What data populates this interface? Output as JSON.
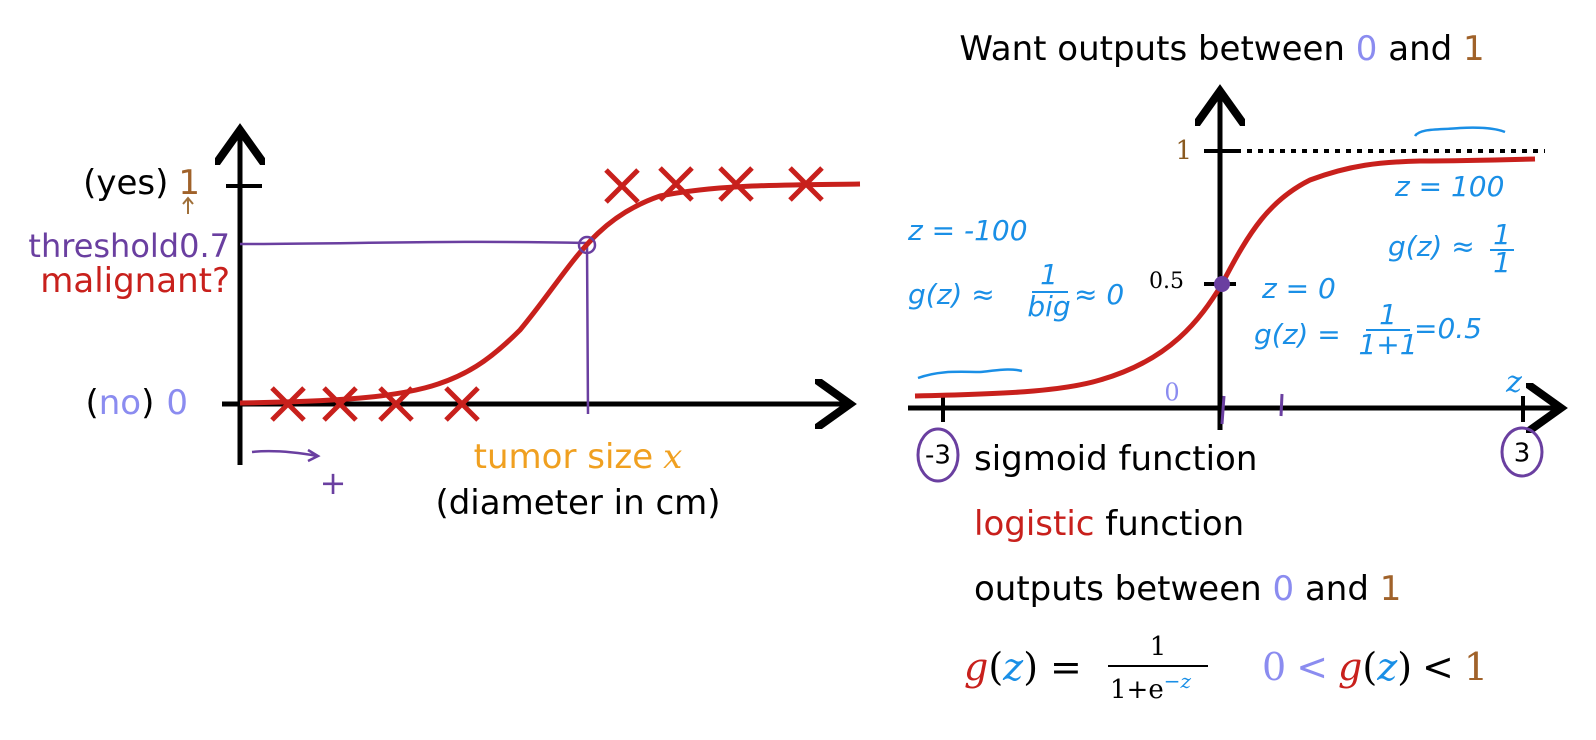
{
  "left_plot": {
    "y_top_label": [
      "(yes)",
      "1"
    ],
    "threshold": [
      "threshold",
      "0.7"
    ],
    "y_axis_title": "malignant?",
    "y_bottom_label": [
      "(",
      "no",
      ")",
      "0"
    ],
    "x_axis_title": [
      "tumor size",
      "x"
    ],
    "x_axis_subtitle": "(diameter in cm)",
    "hand_plus": "+"
  },
  "right_plot": {
    "title": [
      "Want outputs between ",
      "0",
      " and ",
      "1"
    ],
    "y_tick_top": "1",
    "y_tick_mid": "0.5",
    "origin_label": "0",
    "x_axis_title": "z",
    "x_left": "-3",
    "x_right": "3",
    "notes_left": [
      "z = -100",
      "g(z) ≈",
      "1",
      "big",
      "≈ 0"
    ],
    "notes_right": [
      "z = 100",
      "g(z) ≈",
      "1",
      "1"
    ],
    "notes_mid": [
      "z = 0",
      "g(z) =",
      "1",
      "1+1",
      "=0.5"
    ]
  },
  "text_block": {
    "line1": "sigmoid function",
    "line2": [
      "logistic",
      " function"
    ],
    "line3": [
      "outputs between ",
      "0",
      " and ",
      "1"
    ],
    "formula": [
      "g",
      "(",
      "z",
      ")",
      "=",
      "1",
      "1+e",
      "−z"
    ],
    "range": [
      "0",
      "<",
      "g",
      "(",
      "z",
      ")",
      "<",
      "1"
    ]
  }
}
